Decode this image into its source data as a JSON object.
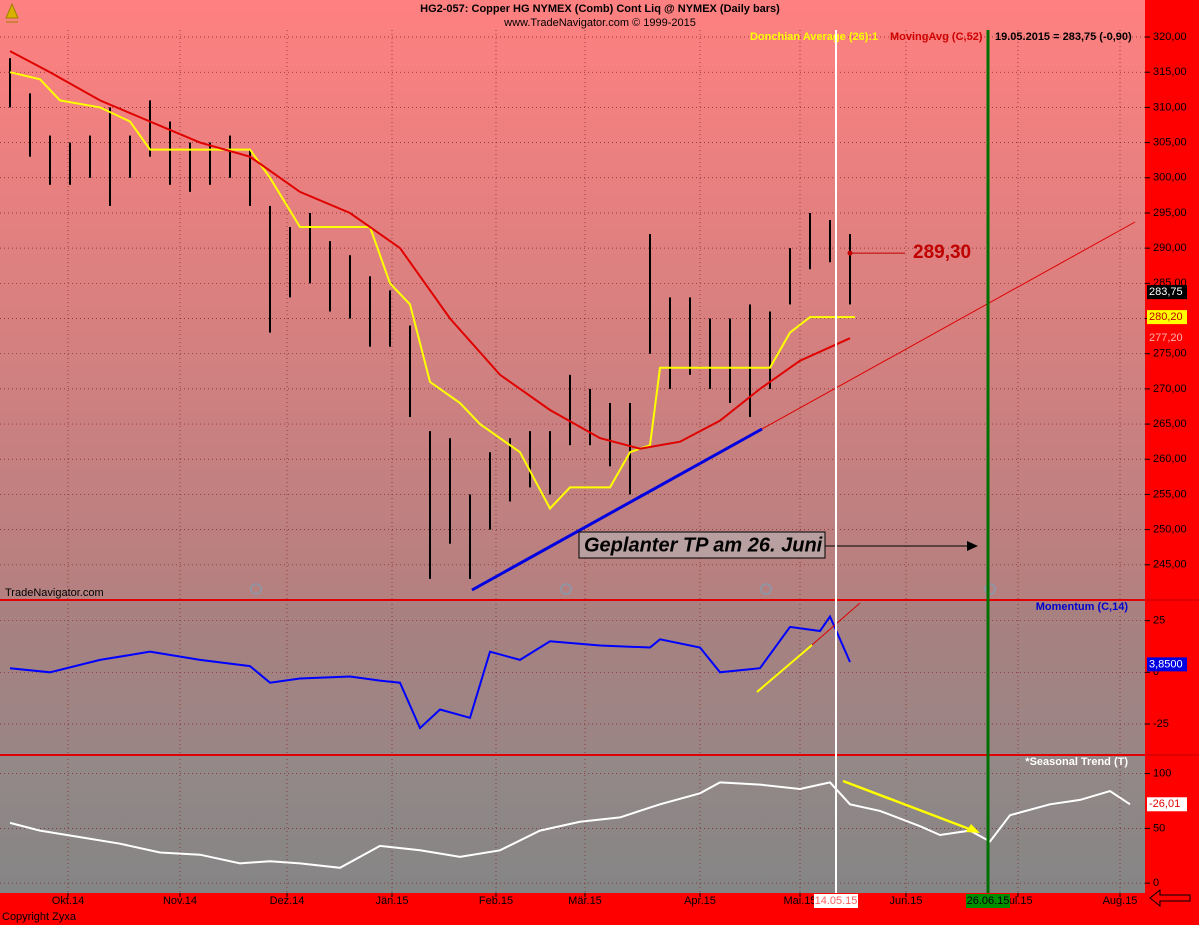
{
  "chart_data": [
    {
      "type": "range",
      "title": "HG2-057:  Copper HG NYMEX (Comb) Cont Liq @ NYMEX  (Daily bars)",
      "subtitle": "www.TradeNavigator.com © 1999-2015",
      "watermark": "TradeNavigator.com",
      "header": "19.05.2015 = 283,75 (-0,90)",
      "xlim": [
        0,
        114.5
      ],
      "ylim": [
        240,
        321
      ],
      "yticks": [
        {
          "value": 245,
          "label": "245,00"
        },
        {
          "value": 250,
          "label": "250,00"
        },
        {
          "value": 255,
          "label": "255,00"
        },
        {
          "value": 260,
          "label": "260,00"
        },
        {
          "value": 265,
          "label": "265,00"
        },
        {
          "value": 270,
          "label": "270,00"
        },
        {
          "value": 275,
          "label": "275,00"
        },
        {
          "value": 280,
          "label": "280,00"
        },
        {
          "value": 285,
          "label": "285,00"
        },
        {
          "value": 290,
          "label": "290,00"
        },
        {
          "value": 295,
          "label": "295,00"
        },
        {
          "value": 300,
          "label": "300,00"
        },
        {
          "value": 305,
          "label": "305,00"
        },
        {
          "value": 310,
          "label": "310,00"
        },
        {
          "value": 315,
          "label": "315,00"
        },
        {
          "value": 320,
          "label": "320,00"
        }
      ],
      "x": [
        1,
        3,
        5,
        7,
        9,
        11,
        13,
        15,
        17,
        19,
        21,
        23,
        25,
        27,
        29,
        31,
        33,
        35,
        37,
        39,
        41,
        43,
        45,
        47,
        49,
        51,
        53,
        55,
        57,
        59,
        61,
        63,
        65,
        67,
        69,
        71,
        73,
        75,
        77,
        79,
        81,
        83,
        85
      ],
      "highs": [
        317,
        312,
        306,
        305,
        306,
        310,
        306,
        311,
        308,
        305,
        305,
        306,
        304,
        296,
        293,
        295,
        291,
        289,
        286,
        284,
        279,
        264,
        263,
        255,
        261,
        263,
        264,
        264,
        272,
        270,
        268,
        268,
        292,
        283,
        283,
        280,
        280,
        282,
        281,
        290,
        295,
        294,
        292
      ],
      "lows": [
        310,
        303,
        299,
        299,
        300,
        296,
        300,
        303,
        299,
        298,
        299,
        300,
        296,
        278,
        283,
        285,
        281,
        280,
        276,
        276,
        266,
        243,
        248,
        243,
        250,
        254,
        256,
        255,
        262,
        262,
        259,
        255,
        275,
        270,
        272,
        270,
        268,
        266,
        270,
        282,
        287,
        288,
        282
      ],
      "bar_color": "#000000",
      "last": {
        "value": 283.75,
        "label": "283,75"
      },
      "annotation": {
        "value": 289.3,
        "label": "289,30"
      },
      "note": "Geplanter TP am 26. Juni",
      "series": [
        {
          "name": "Donchian Average (26):1",
          "color": "#ffff00",
          "x": [
            1,
            4,
            6,
            10,
            13,
            15,
            25,
            27,
            30,
            37,
            39,
            41,
            43,
            46,
            48,
            52,
            55,
            57,
            61,
            63,
            65,
            66,
            77,
            79,
            81,
            85.5
          ],
          "values": [
            315,
            314,
            311,
            310,
            308,
            304,
            304,
            300,
            293,
            293,
            285,
            282,
            271,
            268,
            265,
            261,
            253,
            256,
            256,
            261,
            262,
            273,
            273,
            278,
            280.2,
            280.2
          ],
          "last": {
            "value": 280.2,
            "label": "280,20"
          }
        },
        {
          "name": "MovingAvg (C,52)",
          "color": "#e00000",
          "x": [
            1,
            5,
            10,
            15,
            20,
            25,
            30,
            35,
            40,
            45,
            50,
            55,
            60,
            64,
            68,
            72,
            76,
            80,
            85
          ],
          "values": [
            318,
            315,
            311,
            308,
            305,
            303,
            298,
            295,
            290,
            280,
            272,
            267,
            263,
            261.5,
            262.5,
            265.5,
            270,
            274,
            277.2
          ],
          "last": {
            "value": 277.2,
            "label": "277,20"
          }
        }
      ]
    },
    {
      "type": "line",
      "title": "Momentum (C,14)",
      "xlim": [
        0,
        114.5
      ],
      "ylim": [
        -40,
        35
      ],
      "yticks": [
        -25,
        0,
        25
      ],
      "series": [
        {
          "name": "Momentum (C,14)",
          "color": "#0000ff",
          "x": [
            1,
            5,
            10,
            15,
            20,
            25,
            27,
            30,
            35,
            38,
            40,
            42,
            44,
            47,
            49,
            52,
            55,
            60,
            65,
            66,
            70,
            72,
            76,
            79,
            82,
            83,
            85
          ],
          "values": [
            2,
            0,
            6,
            10,
            6,
            3,
            -5,
            -3,
            -2,
            -4,
            -5,
            -27,
            -18,
            -22,
            10,
            6,
            15,
            13,
            12,
            16,
            12,
            0,
            2,
            22,
            20,
            27,
            5
          ],
          "last": {
            "value": 3.85,
            "label": "3,8500"
          }
        }
      ]
    },
    {
      "type": "line",
      "title": "*Seasonal Trend (T)",
      "footer": "Copyright Zyxa",
      "xlim": [
        0,
        114.5
      ],
      "ylim": [
        -9,
        117
      ],
      "yticks": [
        0,
        50,
        100
      ],
      "xticks": [
        {
          "value": 6.8,
          "label": "Okt.14"
        },
        {
          "value": 18,
          "label": "Nov.14"
        },
        {
          "value": 28.7,
          "label": "Dez.14"
        },
        {
          "value": 39.2,
          "label": "Jän.15"
        },
        {
          "value": 49.6,
          "label": "Feb.15"
        },
        {
          "value": 58.5,
          "label": "Mär.15"
        },
        {
          "value": 70,
          "label": "Apr.15"
        },
        {
          "value": 80,
          "label": "Mai.15"
        },
        {
          "value": 90.6,
          "label": "Jun.15"
        },
        {
          "value": 101.8,
          "label": "Jul.15"
        },
        {
          "value": 112,
          "label": "Aug.15"
        }
      ],
      "markers": [
        {
          "value": 83.6,
          "label": "14.05.15"
        },
        {
          "value": 98.8,
          "label": "26.06.15"
        }
      ],
      "series": [
        {
          "name": "*Seasonal Trend (T)",
          "color": "#ffffff",
          "x": [
            1,
            4,
            8,
            12,
            16,
            20,
            24,
            27,
            30,
            34,
            38,
            42,
            46,
            50,
            54,
            58,
            62,
            66,
            70,
            72,
            76,
            80,
            83,
            85,
            88,
            92,
            94,
            97,
            99,
            101,
            105,
            108,
            111,
            113
          ],
          "values": [
            55,
            48,
            42,
            36,
            28,
            26,
            18,
            20,
            18,
            14,
            34,
            30,
            24,
            30,
            48,
            56,
            60,
            72,
            82,
            92,
            90,
            86,
            92,
            72,
            66,
            52,
            44,
            48,
            38,
            62,
            72,
            76,
            84,
            72
          ],
          "readout": "-26,01"
        }
      ]
    }
  ]
}
